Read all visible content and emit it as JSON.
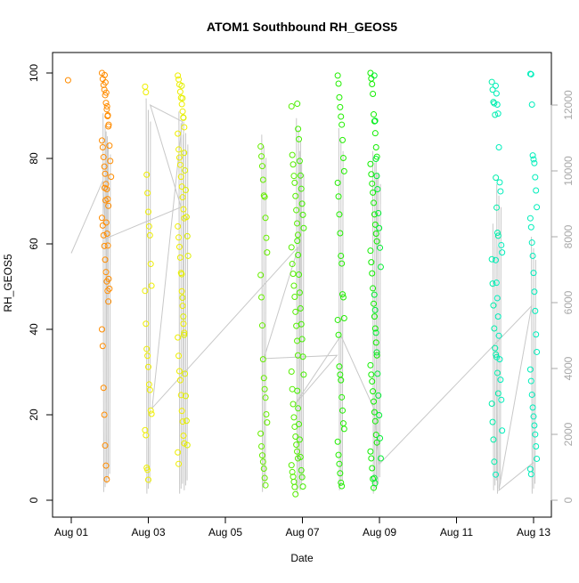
{
  "chart_data": {
    "type": "scatter",
    "title": "ATOM1 Southbound RH_GEOS5",
    "xlabel": "Date",
    "ylabel": "RH_GEOS5",
    "x_range_days": [
      0,
      12
    ],
    "ylim": [
      0,
      100
    ],
    "y2lim": [
      0,
      12000
    ],
    "x_ticks": [
      {
        "v": 0,
        "label": "Aug 01"
      },
      {
        "v": 2,
        "label": "Aug 03"
      },
      {
        "v": 4,
        "label": "Aug 05"
      },
      {
        "v": 6,
        "label": "Aug 07"
      },
      {
        "v": 8,
        "label": "Aug 09"
      },
      {
        "v": 10,
        "label": "Aug 11"
      },
      {
        "v": 12,
        "label": "Aug 13"
      }
    ],
    "y_ticks": [
      0,
      20,
      40,
      60,
      80,
      100
    ],
    "y2_ticks": [
      0,
      2000,
      4000,
      6000,
      8000,
      10000,
      12000
    ],
    "grid": false,
    "legend": "none",
    "altitude_line_color": "#c8c8c8",
    "series": [
      {
        "color": "#ff8c00",
        "x": 0.0,
        "values": [
          98.3
        ]
      },
      {
        "color": "#ff8c00",
        "x": 0.88,
        "values": [
          100.0,
          98.6,
          97.2,
          96.1,
          94.8,
          93.0,
          91.5,
          89.9,
          87.5,
          84.2,
          82.6,
          80.3,
          78.1,
          76.4,
          74.0,
          72.8,
          70.5,
          68.9,
          66.1,
          64.3,
          62.0,
          59.5,
          56.3,
          53.4,
          51.2,
          49.0,
          46.5,
          40.0,
          36.1,
          26.3,
          20.0,
          12.8,
          8.1,
          4.9
        ]
      },
      {
        "color": "#ff8c00",
        "x": 0.95,
        "values": [
          99.5,
          97.8,
          95.4,
          92.2,
          90.1,
          87.9,
          83.0,
          79.4,
          75.7,
          73.1,
          70.2,
          65.0,
          62.4,
          59.6,
          51.8,
          49.5
        ]
      },
      {
        "color": "#eeee00",
        "x": 2.0,
        "values": [
          96.8,
          95.5,
          76.2,
          71.9,
          67.5,
          64.1,
          62.0,
          55.3,
          50.2,
          49.0,
          41.3,
          35.4,
          33.8,
          31.2,
          27.1,
          25.8,
          21.0,
          20.2,
          16.4,
          15.2,
          7.6,
          7.1,
          4.8
        ]
      },
      {
        "color": "#eeee00",
        "x": 2.85,
        "values": [
          99.4,
          98.5,
          97.3,
          95.6,
          94.2,
          92.7,
          91.0,
          89.5,
          87.3,
          85.8,
          82.1,
          80.2,
          78.5,
          75.7,
          73.4,
          70.9,
          68.1,
          66.0,
          64.1,
          61.5,
          59.3,
          56.8,
          53.2,
          48.9,
          45.5,
          41.3,
          39.2,
          38.1,
          33.8,
          30.2,
          28.1,
          24.6,
          20.9,
          18.4,
          15.1,
          13.3,
          11.2,
          8.5
        ]
      },
      {
        "color": "#ddee00",
        "x": 2.95,
        "values": [
          97.0,
          94.1,
          89.6,
          81.3,
          77.2,
          72.6,
          66.3,
          61.8,
          57.2,
          52.9,
          47.4,
          43.0,
          38.7,
          29.6,
          24.4,
          18.6,
          12.9
        ]
      },
      {
        "color": "#66ee00",
        "x": 5.0,
        "values": [
          82.8,
          80.5,
          78.2,
          75.0,
          71.3,
          71.0,
          66.1,
          61.4,
          58.0,
          52.7,
          47.5,
          40.9,
          33.0,
          28.6,
          26.0,
          24.0,
          20.1,
          18.2,
          15.6,
          12.6,
          10.5,
          9.0,
          7.4,
          5.2,
          3.5
        ]
      },
      {
        "color": "#55ee00",
        "x": 5.8,
        "values": [
          92.2,
          80.8,
          78.6,
          75.9,
          74.3,
          71.2,
          67.9,
          64.8,
          62.1,
          59.2,
          55.3,
          53.0,
          50.2,
          47.6,
          44.1,
          40.8,
          37.3,
          33.9,
          30.1,
          26.0,
          22.5,
          19.4,
          17.2,
          14.9,
          13.0,
          11.4,
          9.8,
          8.2,
          6.6,
          5.5,
          4.3,
          3.1,
          1.4
        ]
      },
      {
        "color": "#44ee00",
        "x": 5.95,
        "values": [
          92.8,
          86.9,
          84.5,
          79.4,
          76.0,
          72.9,
          69.4,
          66.8,
          63.7,
          60.7,
          57.4,
          52.8,
          48.6,
          44.9,
          41.2,
          37.7,
          33.6,
          29.4,
          25.6,
          21.5,
          17.8,
          14.2,
          10.1,
          7.0,
          5.4,
          3.2
        ]
      },
      {
        "color": "#22ee00",
        "x": 7.0,
        "values": [
          99.4,
          97.5,
          94.3,
          92.0,
          89.8,
          87.9,
          84.3,
          80.1,
          77.0,
          74.3,
          71.1,
          66.9,
          62.5,
          57.2,
          55.4,
          48.2,
          47.5,
          42.6,
          42.2,
          38.7,
          31.3,
          29.4,
          28.1,
          24.1,
          21.0,
          18.0,
          16.7,
          13.7,
          10.6,
          8.5,
          6.3,
          4.1,
          3.3
        ]
      },
      {
        "color": "#11ee00",
        "x": 7.85,
        "values": [
          100.0,
          98.7,
          97.4,
          95.1,
          90.3,
          88.7,
          85.9,
          82.6,
          80.4,
          78.7,
          76.3,
          74.1,
          72.0,
          69.6,
          66.9,
          64.5,
          62.4,
          60.6,
          58.4,
          55.7,
          53.1,
          49.6,
          46.0,
          43.0,
          40.2,
          36.9,
          33.9,
          31.6,
          29.4,
          27.8,
          25.5,
          23.1,
          20.6,
          18.5,
          15.3,
          13.5,
          11.4,
          9.8,
          7.5,
          5.0,
          2.9
        ]
      },
      {
        "color": "#00ee33",
        "x": 7.95,
        "values": [
          99.4,
          88.8,
          79.9,
          75.9,
          72.8,
          67.2,
          63.7,
          59.1,
          54.6,
          48.1,
          44.5,
          39.2,
          34.6,
          29.6,
          24.5,
          19.9,
          14.5,
          9.8,
          5.2,
          4.0
        ]
      },
      {
        "color": "#00eeaa",
        "x": 11.0,
        "values": [
          97.9,
          96.1,
          93.2,
          92.9,
          90.2,
          75.5,
          68.5,
          62.6,
          61.9,
          56.4,
          50.7,
          45.6,
          40.2,
          35.6,
          34.1,
          33.5,
          29.8,
          25.0,
          22.6,
          18.3,
          14.2,
          9.0
        ]
      },
      {
        "color": "#00eebb",
        "x": 11.1,
        "values": [
          97.0,
          95.2,
          92.6,
          90.5,
          82.6,
          74.4,
          72.3,
          59.7,
          58.0,
          56.2,
          50.9,
          47.3,
          43.0,
          38.5,
          33.0,
          28.2,
          23.5,
          16.3,
          6.0
        ]
      },
      {
        "color": "#00eebb",
        "x": 12.0,
        "values": [
          99.8,
          99.7,
          92.6,
          80.7,
          79.8,
          78.9,
          75.6,
          72.5,
          68.6,
          66.0,
          63.9,
          60.3,
          57.2,
          53.2,
          48.8,
          44.3,
          38.8,
          34.7,
          30.6,
          27.9,
          24.7,
          21.7,
          19.6,
          17.5,
          15.4,
          12.6,
          9.7,
          7.3,
          6.1
        ]
      }
    ],
    "altitude_traces": [
      {
        "x": 0.88,
        "alt_min": 250,
        "alt_max": 11750
      },
      {
        "x": 0.96,
        "alt_min": 500,
        "alt_max": 11200
      },
      {
        "x": 2.0,
        "alt_min": 200,
        "alt_max": 12200
      },
      {
        "x": 2.85,
        "alt_min": 200,
        "alt_max": 11800
      },
      {
        "x": 2.97,
        "alt_min": 300,
        "alt_max": 11500
      },
      {
        "x": 5.0,
        "alt_min": 250,
        "alt_max": 11100
      },
      {
        "x": 5.9,
        "alt_min": 200,
        "alt_max": 11600
      },
      {
        "x": 5.98,
        "alt_min": 300,
        "alt_max": 10600
      },
      {
        "x": 7.0,
        "alt_min": 300,
        "alt_max": 11300
      },
      {
        "x": 7.88,
        "alt_min": 200,
        "alt_max": 10600
      },
      {
        "x": 7.97,
        "alt_min": 400,
        "alt_max": 10300
      },
      {
        "x": 11.0,
        "alt_min": 300,
        "alt_max": 8400
      },
      {
        "x": 11.1,
        "alt_min": 200,
        "alt_max": 9600
      },
      {
        "x": 12.0,
        "alt_min": 200,
        "alt_max": 8000
      }
    ],
    "altitude_path": [
      [
        0.0,
        7500
      ],
      [
        0.82,
        9700
      ],
      [
        0.9,
        7950
      ],
      [
        2.85,
        8900
      ],
      [
        2.05,
        12000
      ],
      [
        2.88,
        11500
      ],
      [
        2.1,
        2800
      ],
      [
        5.9,
        7700
      ],
      [
        5.0,
        4300
      ],
      [
        6.9,
        4400
      ],
      [
        5.8,
        2900
      ],
      [
        7.0,
        5000
      ],
      [
        7.85,
        2800
      ],
      [
        8.0,
        1100
      ],
      [
        11.95,
        5900
      ],
      [
        11.1,
        300
      ],
      [
        12.0,
        1150
      ]
    ]
  }
}
